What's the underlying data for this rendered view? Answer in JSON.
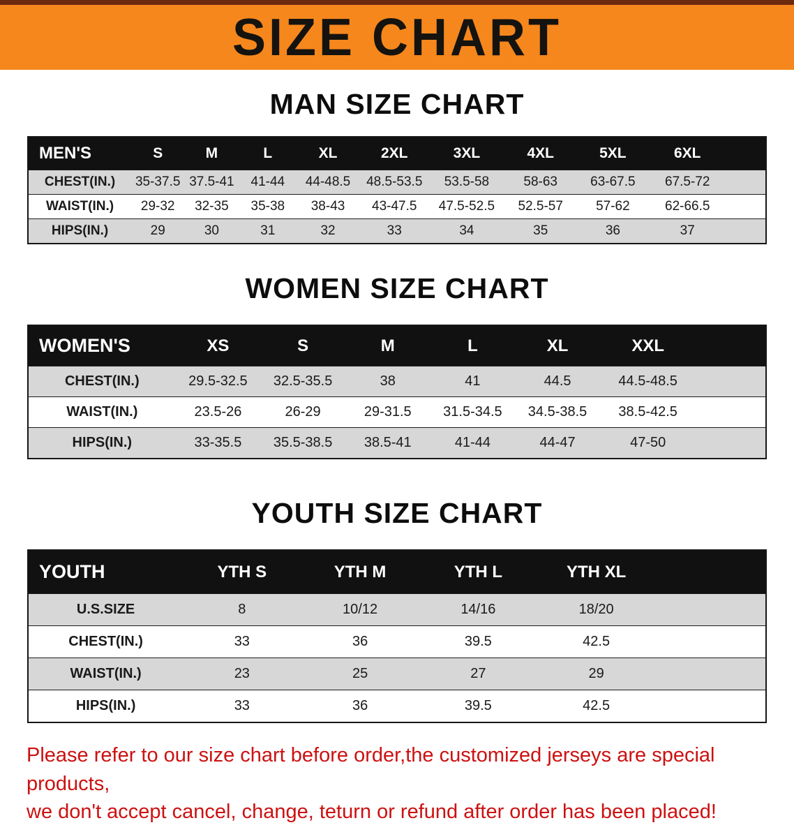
{
  "banner": {
    "title": "SIZE CHART"
  },
  "sections": [
    {
      "id": "men",
      "heading": "MAN SIZE CHART",
      "table": {
        "header": [
          "MEN'S",
          "S",
          "M",
          "L",
          "XL",
          "2XL",
          "3XL",
          "4XL",
          "5XL",
          "6XL"
        ],
        "rows": [
          {
            "label": "CHEST(IN.)",
            "values": [
              "35-37.5",
              "37.5-41",
              "41-44",
              "44-48.5",
              "48.5-53.5",
              "53.5-58",
              "58-63",
              "63-67.5",
              "67.5-72"
            ]
          },
          {
            "label": "WAIST(IN.)",
            "values": [
              "29-32",
              "32-35",
              "35-38",
              "38-43",
              "43-47.5",
              "47.5-52.5",
              "52.5-57",
              "57-62",
              "62-66.5"
            ]
          },
          {
            "label": "HIPS(IN.)",
            "values": [
              "29",
              "30",
              "31",
              "32",
              "33",
              "34",
              "35",
              "36",
              "37"
            ]
          }
        ]
      }
    },
    {
      "id": "women",
      "heading": "WOMEN SIZE CHART",
      "table": {
        "header": [
          "WOMEN'S",
          "XS",
          "S",
          "M",
          "L",
          "XL",
          "XXL"
        ],
        "rows": [
          {
            "label": "CHEST(IN.)",
            "values": [
              "29.5-32.5",
              "32.5-35.5",
              "38",
              "41",
              "44.5",
              "44.5-48.5"
            ]
          },
          {
            "label": "WAIST(IN.)",
            "values": [
              "23.5-26",
              "26-29",
              "29-31.5",
              "31.5-34.5",
              "34.5-38.5",
              "38.5-42.5"
            ]
          },
          {
            "label": "HIPS(IN.)",
            "values": [
              "33-35.5",
              "35.5-38.5",
              "38.5-41",
              "41-44",
              "44-47",
              "47-50"
            ]
          }
        ]
      }
    },
    {
      "id": "youth",
      "heading": "YOUTH SIZE CHART",
      "table": {
        "header": [
          "YOUTH",
          "YTH S",
          "YTH M",
          "YTH L",
          "YTH XL"
        ],
        "rows": [
          {
            "label": "U.S.SIZE",
            "values": [
              "8",
              "10/12",
              "14/16",
              "18/20"
            ]
          },
          {
            "label": "CHEST(IN.)",
            "values": [
              "33",
              "36",
              "39.5",
              "42.5"
            ]
          },
          {
            "label": "WAIST(IN.)",
            "values": [
              "23",
              "25",
              "27",
              "29"
            ]
          },
          {
            "label": "HIPS(IN.)",
            "values": [
              "33",
              "36",
              "39.5",
              "42.5"
            ]
          }
        ]
      }
    }
  ],
  "footer": {
    "line1": "Please refer to our size chart before order,the customized jerseys are special products,",
    "line2": "we don't accept cancel, change, teturn or refund after order has been placed!"
  },
  "colors": {
    "banner_bg": "#f6871d",
    "banner_strip": "#6d2a0f",
    "table_header_bg": "#111111",
    "row_alt": "#d7d7d7",
    "footer_text": "#cc1111"
  }
}
